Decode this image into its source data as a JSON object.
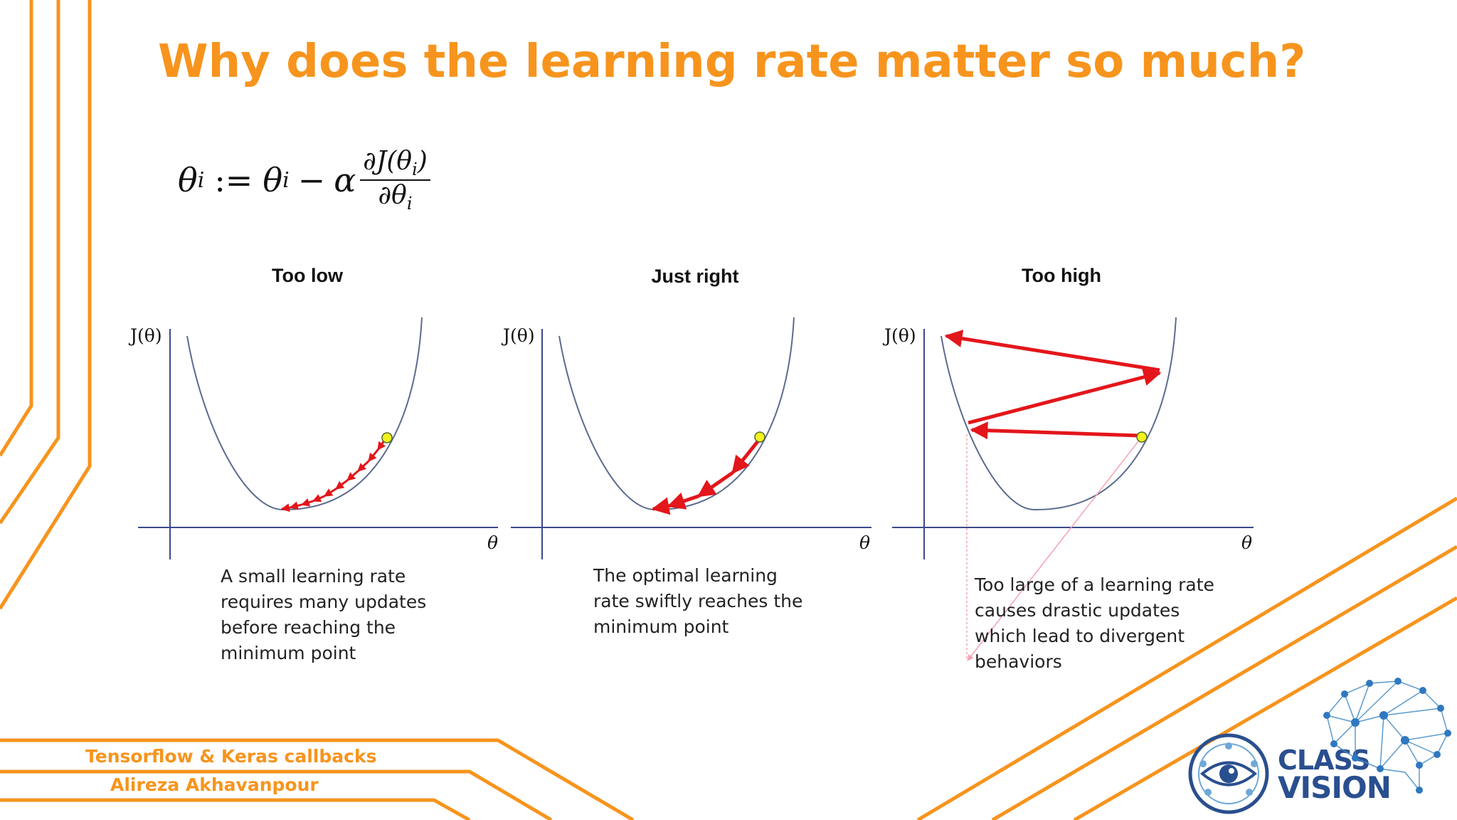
{
  "slide": {
    "title": "Why does the learning rate matter so much?"
  },
  "formula": {
    "lhs": "θ",
    "lhs_sub": "i",
    "assign": ":=",
    "rhs": "θ",
    "rhs_sub": "i",
    "minus": "−",
    "alpha": "α",
    "numerator": "∂J(θ",
    "numerator_sub": "i",
    "numerator_close": ")",
    "denominator": "∂θ",
    "denominator_sub": "i"
  },
  "panels": [
    {
      "title": "Too low",
      "ylabel": "J(θ)",
      "xlabel": "θ",
      "caption": [
        "A small learning rate",
        "requires many updates",
        "before reaching the",
        "minimum point"
      ]
    },
    {
      "title": "Just right",
      "ylabel": "J(θ)",
      "xlabel": "θ",
      "caption": [
        "The optimal learning",
        "rate swiftly reaches the",
        "minimum point"
      ]
    },
    {
      "title": "Too high",
      "ylabel": "J(θ)",
      "xlabel": "θ",
      "caption": [
        "Too large of a learning rate",
        "causes drastic updates",
        "which lead to divergent",
        "behaviors"
      ]
    }
  ],
  "footer": {
    "course": "Tensorflow & Keras callbacks",
    "author": "Alireza Akhavanpour"
  },
  "logo": {
    "line1": "CLASS",
    "line2": "VISION",
    "icon": "class-vision-eye-logo"
  },
  "colors": {
    "accent": "#f7941d",
    "arrow": "#e3161b",
    "curve": "#5c6b8f",
    "point": "#f2f21d",
    "brand": "#2a4f8f"
  }
}
